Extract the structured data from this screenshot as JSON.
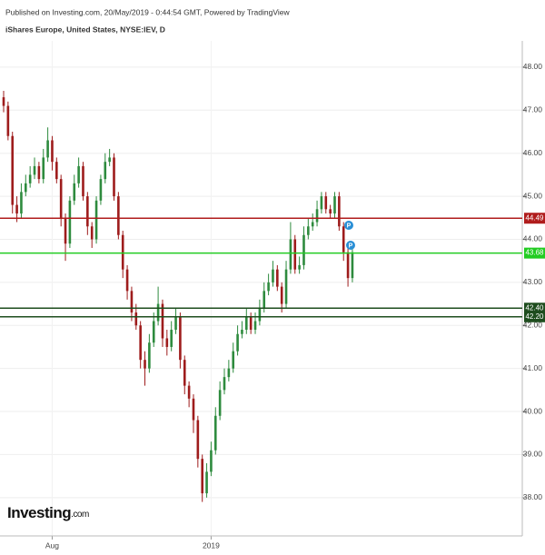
{
  "chart_data": {
    "type": "candlestick",
    "source_note": "Published on Investing.com, 20/May/2019 - 0:44:54 GMT, Powered by TradingView",
    "title": "iShares Europe, United States, NYSE:IEV, D",
    "watermark": "Investing",
    "watermark_suffix": ".com",
    "event_markers": [
      "P",
      "P"
    ],
    "up_color": "#2e8b3e",
    "down_color": "#9e1c1c",
    "open": [
      47.3,
      47.1,
      46.4,
      44.8,
      44.6,
      45.1,
      45.3,
      45.5,
      45.7,
      45.4,
      45.9,
      46.3,
      45.8,
      45.4,
      44.5,
      43.9,
      44.9,
      45.3,
      45.7,
      45.0,
      44.3,
      44.0,
      44.9,
      45.4,
      45.8,
      45.9,
      45.0,
      44.1,
      43.3,
      42.8,
      42.3,
      42.0,
      41.2,
      41.0,
      41.6,
      42.1,
      42.5,
      41.7,
      41.5,
      41.9,
      42.2,
      41.2,
      40.6,
      40.3,
      39.8,
      38.9,
      38.1,
      38.6,
      39.1,
      39.9,
      40.5,
      40.8,
      41.0,
      41.4,
      41.8,
      41.9,
      42.2,
      41.9,
      42.1,
      42.4,
      42.8,
      43.0,
      43.3,
      42.9,
      42.5,
      43.3,
      44.0,
      43.3,
      43.4,
      44.1,
      44.3,
      44.4,
      44.7,
      45.0,
      44.7,
      44.6,
      45.0,
      44.3,
      43.7,
      43.1
    ],
    "high": [
      47.45,
      47.2,
      46.5,
      45.0,
      45.3,
      45.5,
      45.7,
      45.9,
      45.8,
      46.1,
      46.6,
      46.4,
      45.9,
      45.5,
      44.6,
      45.0,
      45.5,
      45.9,
      45.8,
      45.1,
      44.4,
      45.0,
      45.5,
      46.0,
      46.1,
      46.0,
      45.1,
      44.2,
      43.4,
      42.9,
      42.5,
      42.1,
      41.4,
      41.8,
      42.3,
      42.9,
      42.6,
      41.9,
      42.1,
      42.4,
      42.3,
      41.3,
      40.7,
      40.4,
      39.9,
      39.0,
      38.8,
      39.3,
      40.1,
      40.7,
      41.0,
      41.2,
      41.6,
      42.0,
      42.1,
      42.4,
      42.3,
      42.3,
      42.6,
      43.0,
      43.2,
      43.5,
      43.4,
      43.0,
      43.5,
      44.4,
      44.1,
      43.6,
      44.3,
      44.5,
      44.6,
      44.9,
      45.1,
      45.1,
      44.8,
      45.1,
      45.1,
      44.4,
      43.8,
      43.9
    ],
    "low": [
      46.95,
      46.3,
      44.6,
      44.4,
      44.5,
      45.0,
      45.2,
      45.4,
      45.3,
      45.3,
      45.8,
      45.6,
      45.3,
      44.3,
      43.5,
      43.8,
      44.8,
      45.2,
      44.9,
      44.1,
      43.8,
      43.9,
      44.8,
      45.3,
      45.7,
      44.9,
      44.0,
      43.1,
      42.6,
      42.1,
      41.9,
      41.0,
      40.6,
      40.9,
      41.5,
      42.0,
      41.5,
      41.3,
      41.4,
      41.8,
      41.0,
      40.4,
      40.1,
      39.5,
      38.7,
      37.9,
      38.0,
      38.5,
      39.0,
      39.8,
      40.4,
      40.7,
      40.9,
      41.3,
      41.7,
      41.8,
      41.8,
      41.8,
      42.0,
      42.3,
      42.7,
      42.9,
      42.8,
      42.3,
      42.4,
      43.2,
      43.2,
      43.2,
      43.3,
      44.0,
      44.2,
      44.3,
      44.6,
      44.6,
      44.5,
      44.5,
      44.2,
      43.5,
      42.9,
      43.0
    ],
    "close": [
      47.1,
      46.4,
      44.8,
      44.6,
      45.1,
      45.3,
      45.5,
      45.7,
      45.4,
      45.9,
      46.3,
      45.8,
      45.4,
      44.5,
      43.9,
      44.9,
      45.3,
      45.7,
      45.0,
      44.3,
      44.0,
      44.9,
      45.4,
      45.8,
      45.9,
      45.0,
      44.1,
      43.3,
      42.8,
      42.3,
      42.0,
      41.2,
      41.0,
      41.6,
      42.1,
      42.5,
      41.7,
      41.5,
      41.9,
      42.2,
      41.2,
      40.6,
      40.3,
      39.8,
      38.9,
      38.1,
      38.6,
      39.1,
      39.9,
      40.5,
      40.8,
      41.0,
      41.4,
      41.8,
      41.9,
      42.2,
      41.9,
      42.1,
      42.4,
      42.8,
      43.0,
      43.3,
      42.9,
      42.5,
      43.3,
      44.0,
      43.3,
      43.4,
      44.1,
      44.3,
      44.4,
      44.7,
      45.0,
      44.7,
      44.6,
      45.0,
      44.3,
      43.7,
      43.1,
      43.7
    ],
    "xticks": [
      {
        "value": 11,
        "label": "Aug"
      },
      {
        "value": 47,
        "label": "2019"
      }
    ],
    "ylim": [
      37.11,
      48.61
    ],
    "yticks": [
      {
        "value": 38,
        "label": "38.00"
      },
      {
        "value": 39,
        "label": "39.00"
      },
      {
        "value": 40,
        "label": "40.00"
      },
      {
        "value": 41,
        "label": "41.00"
      },
      {
        "value": 42,
        "label": "42.00"
      },
      {
        "value": 43,
        "label": "43.00"
      },
      {
        "value": 44,
        "label": "44.00"
      },
      {
        "value": 45,
        "label": "45.00"
      },
      {
        "value": 46,
        "label": "46.00"
      },
      {
        "value": 47,
        "label": "47.00"
      },
      {
        "value": 48,
        "label": "48.00"
      }
    ],
    "grid": true,
    "levels": [
      {
        "value": 44.49,
        "label": "44.49",
        "color": "#b01c1c"
      },
      {
        "value": 43.68,
        "label": "43.68",
        "color": "#22cc22"
      },
      {
        "value": 42.4,
        "label": "42.40",
        "color": "#1e4d1e"
      },
      {
        "value": 42.2,
        "label": "42.20",
        "color": "#1e4d1e"
      }
    ]
  }
}
